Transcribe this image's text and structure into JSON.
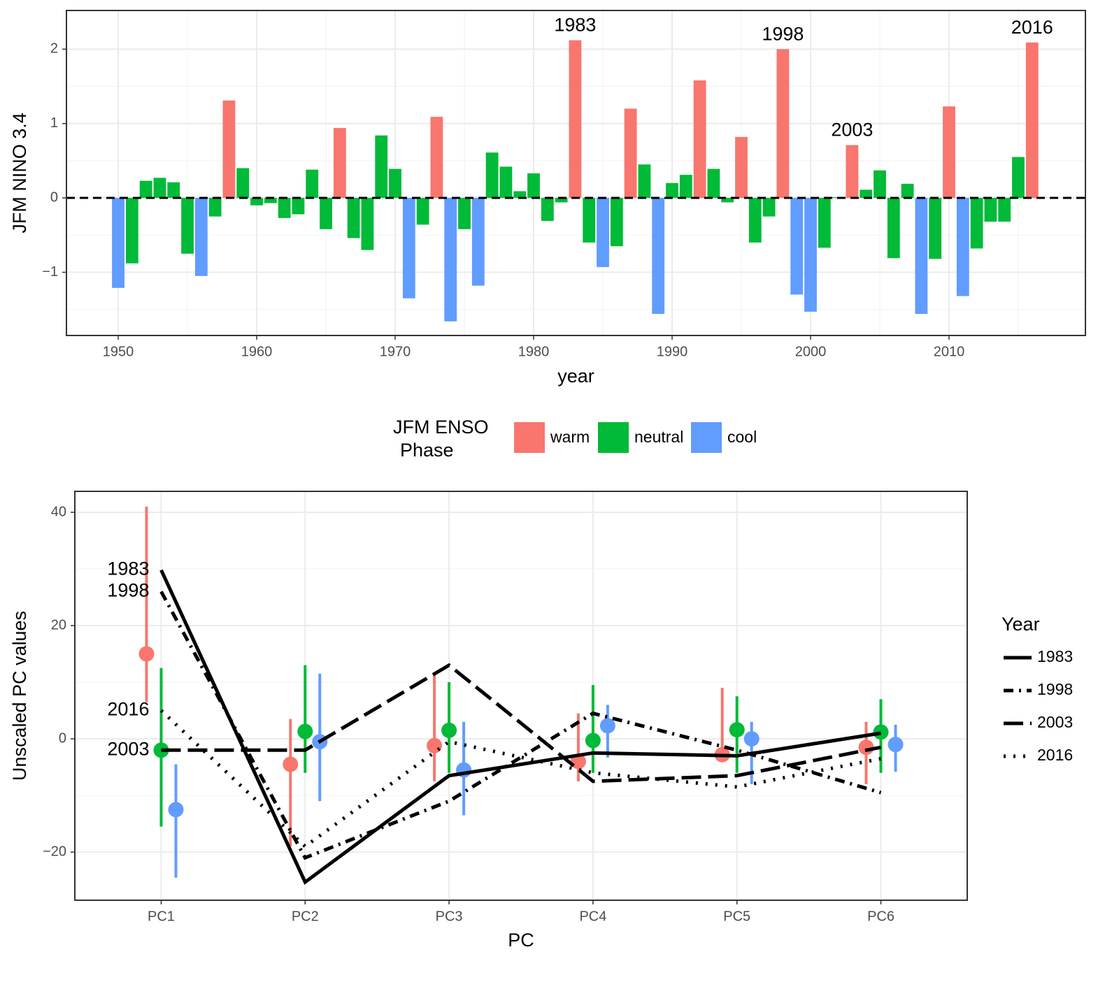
{
  "chart_data": [
    {
      "type": "bar",
      "series": [
        {
          "name": "warm",
          "color": "#F8766D",
          "x": [
            1958,
            1966,
            1973,
            1983,
            1987,
            1992,
            1995,
            1998,
            2003,
            2010,
            2016
          ],
          "values": [
            1.31,
            0.94,
            1.09,
            2.12,
            1.2,
            1.58,
            0.82,
            2.0,
            0.71,
            1.23,
            2.09
          ]
        },
        {
          "name": "neutral",
          "color": "#00BA38",
          "x": [
            1951,
            1952,
            1953,
            1954,
            1955,
            1957,
            1959,
            1960,
            1961,
            1962,
            1963,
            1964,
            1965,
            1967,
            1968,
            1969,
            1970,
            1972,
            1975,
            1977,
            1978,
            1979,
            1980,
            1981,
            1982,
            1984,
            1986,
            1988,
            1990,
            1991,
            1993,
            1994,
            1996,
            1997,
            2001,
            2002,
            2004,
            2005,
            2006,
            2007,
            2009,
            2012,
            2013,
            2014,
            2015
          ],
          "values": [
            -0.88,
            0.23,
            0.27,
            0.21,
            -0.75,
            -0.25,
            0.4,
            -0.1,
            -0.07,
            -0.27,
            -0.22,
            0.38,
            -0.42,
            -0.54,
            -0.7,
            0.84,
            0.39,
            -0.36,
            -0.42,
            0.61,
            0.42,
            0.09,
            0.33,
            -0.31,
            -0.06,
            -0.6,
            -0.65,
            0.45,
            0.2,
            0.31,
            0.39,
            -0.06,
            -0.6,
            -0.25,
            -0.67,
            0.01,
            0.11,
            0.37,
            -0.81,
            0.19,
            -0.82,
            -0.68,
            -0.32,
            -0.32,
            0.55
          ]
        },
        {
          "name": "cool",
          "color": "#619CFF",
          "x": [
            1950,
            1956,
            1971,
            1974,
            1976,
            1985,
            1989,
            1999,
            2000,
            2008,
            2011
          ],
          "values": [
            -1.21,
            -1.05,
            -1.35,
            -1.66,
            -1.18,
            -0.93,
            -1.56,
            -1.3,
            -1.53,
            -1.56,
            -1.32
          ]
        }
      ],
      "xlim": [
        1946.26,
        2019.85
      ],
      "xticks": [
        1950,
        1960,
        1970,
        1980,
        1990,
        2000,
        2010
      ],
      "xminor": [
        1955,
        1965,
        1975,
        1985,
        1995,
        2005,
        2015
      ],
      "ylim": [
        -1.85,
        2.52
      ],
      "yticks": [
        {
          "value": -1,
          "label": "−1"
        },
        0,
        1,
        2
      ],
      "yminor": [
        -1.5,
        -0.5,
        0.5,
        1.5
      ],
      "hline": 0,
      "grid": true,
      "xlabel": "year",
      "ylabel": "JFM NINO 3.4",
      "legend_title": [
        "JFM ENSO",
        "Phase"
      ],
      "legend_position": "bottom",
      "annotations": [
        {
          "text": "1983",
          "x": 1983
        },
        {
          "text": "1998",
          "x": 1998
        },
        {
          "text": "2003",
          "x": 2003
        },
        {
          "text": "2016",
          "x": 2016
        }
      ]
    },
    {
      "type": "line",
      "categories": [
        "PC1",
        "PC2",
        "PC3",
        "PC4",
        "PC5",
        "PC6"
      ],
      "series": [
        {
          "name": "1983",
          "color": "#000000",
          "dash": "solid",
          "values": [
            29.8,
            -25.3,
            -6.5,
            -2.5,
            -3,
            1
          ]
        },
        {
          "name": "1998",
          "color": "#000000",
          "dash": "dotdash",
          "values": [
            26,
            -21,
            -11,
            4.5,
            -2,
            -9.5
          ]
        },
        {
          "name": "2003",
          "color": "#000000",
          "dash": "longdash",
          "values": [
            -2,
            -2,
            13,
            -7.5,
            -6.5,
            -1.5
          ]
        },
        {
          "name": "2016",
          "color": "#000000",
          "dash": "dotted",
          "values": [
            5,
            -19,
            -0.5,
            -6,
            -8.5,
            -3.5
          ]
        }
      ],
      "point_series": [
        {
          "name": "warm",
          "color": "#F8766D",
          "values": [
            15,
            -4.5,
            -1.2,
            -4,
            -2.8,
            -1.5
          ],
          "lower": [
            6.5,
            -19,
            -7.5,
            -7.5,
            -3.5,
            -8
          ],
          "upper": [
            41,
            3.5,
            11.5,
            4.5,
            9,
            3
          ]
        },
        {
          "name": "neutral",
          "color": "#00BA38",
          "values": [
            -2,
            1.3,
            1.5,
            -0.3,
            1.6,
            1.2
          ],
          "lower": [
            -15.5,
            -6,
            -6,
            -6,
            -6,
            -6
          ],
          "upper": [
            12.5,
            13,
            10,
            9.5,
            7.5,
            7
          ]
        },
        {
          "name": "cool",
          "color": "#619CFF",
          "values": [
            -12.5,
            -0.5,
            -5.5,
            2.3,
            0,
            -1
          ],
          "lower": [
            -24.5,
            -11,
            -13.5,
            -3.3,
            -8,
            -5.8
          ],
          "upper": [
            -4.5,
            11.5,
            3,
            6,
            3,
            2.5
          ]
        }
      ],
      "ylim": [
        -28.5,
        43.7
      ],
      "yticks": [
        {
          "value": -20,
          "label": "−20"
        },
        0,
        20,
        40
      ],
      "yminor": [
        -10,
        10,
        30
      ],
      "grid": true,
      "xlabel": "PC",
      "ylabel": "Unscaled PC values",
      "legend_title": "Year",
      "legend_position": "right"
    }
  ]
}
